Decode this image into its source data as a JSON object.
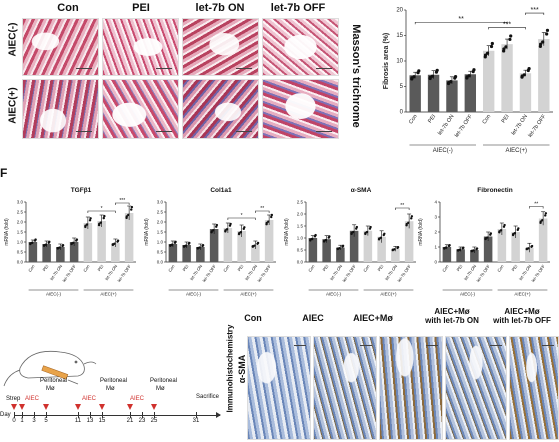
{
  "panel_a": {
    "columns": [
      "Con",
      "PEI",
      "let-7b ON",
      "let-7b OFF"
    ],
    "rows": [
      "AIEC(-)",
      "AIEC(+)"
    ],
    "stain": "Masson's trichrome"
  },
  "panel_f_label": "F",
  "panel_i": {
    "columns": [
      "Con",
      "AIEC",
      "AIEC+Mø",
      "AIEC+Mø\nwith let-7b ON",
      "AIEC+Mø\nwith let-7b OFF"
    ],
    "row_label_1": "α-SMA",
    "row_label_2": "Immunohistochemistry"
  },
  "timeline": {
    "labels_top": [
      "Strep",
      "AIEC",
      "Peritoneal",
      "Mø",
      "AIEC",
      "Peritoneal",
      "Mø",
      "AIEC",
      "Peritoneal",
      "Mø",
      "Sacrifice"
    ],
    "day_label": "Day",
    "days": [
      "0",
      "1",
      "3",
      "5",
      "11",
      "13",
      "15",
      "21",
      "23",
      "25",
      "31"
    ]
  },
  "charts": {
    "fibrosis": {
      "title": "",
      "ylabel": "Fibrosis area (%)",
      "yticks": [
        "0",
        "5",
        "10",
        "15",
        "20"
      ],
      "categories": [
        "Con",
        "PEI",
        "let-7b ON",
        "let-7b OFF",
        "Con",
        "PEI",
        "let-7b ON",
        "let-7b OFF"
      ],
      "group_labels": [
        "AIEC(-)",
        "AIEC(+)"
      ],
      "sig": [
        "**",
        "***",
        "***"
      ]
    },
    "tgfb1": {
      "title": "TGFβ1",
      "ylabel": "mRNA (fold)",
      "yticks": [
        "0.0",
        "0.5",
        "1.0",
        "1.5",
        "2.0",
        "2.5",
        "3.0"
      ],
      "categories": [
        "Con",
        "PEI",
        "let-7b ON",
        "let-7b OFF",
        "Con",
        "PEI",
        "let-7b ON",
        "let-7b OFF"
      ],
      "group_labels": [
        "AIEC(-)",
        "AIEC(+)"
      ],
      "sig": [
        "*",
        "***"
      ]
    },
    "col1a1": {
      "title": "Col1a1",
      "ylabel": "mRNA (fold)",
      "yticks": [
        "0.0",
        "0.5",
        "1.0",
        "1.5",
        "2.0",
        "2.5",
        "3.0"
      ],
      "categories": [
        "Con",
        "PEI",
        "let-7b ON",
        "let-7b OFF",
        "Con",
        "PEI",
        "let-7b ON",
        "let-7b OFF"
      ],
      "group_labels": [
        "AIEC(-)",
        "AIEC(+)"
      ],
      "sig": [
        "*",
        "**"
      ]
    },
    "asma": {
      "title": "α-SMA",
      "ylabel": "mRNA (fold)",
      "yticks": [
        "0.0",
        "0.5",
        "1.0",
        "1.5",
        "2.0",
        "2.5"
      ],
      "categories": [
        "Con",
        "PEI",
        "let-7b ON",
        "let-7b OFF",
        "Con",
        "PEI",
        "let-7b ON",
        "let-7b OFF"
      ],
      "group_labels": [
        "AIEC(-)",
        "AIEC(+)"
      ],
      "sig": [
        "**"
      ]
    },
    "fibronectin": {
      "title": "Fibronectin",
      "ylabel": "mRNA (fold)",
      "yticks": [
        "0",
        "1",
        "2",
        "3",
        "4"
      ],
      "categories": [
        "Con",
        "PEI",
        "let-7b ON",
        "let-7b OFF",
        "Con",
        "PEI",
        "let-7b ON",
        "let-7b OFF"
      ],
      "group_labels": [
        "AIEC(-)",
        "AIEC(+)"
      ],
      "sig": [
        "**"
      ]
    }
  },
  "chart_data": [
    {
      "type": "bar",
      "title": "",
      "ylabel": "Fibrosis area (%)",
      "ylim": [
        0,
        20
      ],
      "categories": [
        "Con",
        "PEI",
        "let-7b ON",
        "let-7b OFF",
        "Con",
        "PEI",
        "let-7b ON",
        "let-7b OFF"
      ],
      "values": [
        7.2,
        7.3,
        6.2,
        7.4,
        12.0,
        13.3,
        7.6,
        14.3
      ],
      "errors": [
        0.6,
        0.8,
        0.7,
        0.6,
        1.0,
        1.0,
        0.6,
        1.3
      ],
      "colors": [
        "#5a5a5a",
        "#5a5a5a",
        "#5a5a5a",
        "#5a5a5a",
        "#d3d3d3",
        "#d3d3d3",
        "#d3d3d3",
        "#d3d3d3"
      ]
    },
    {
      "type": "bar",
      "title": "TGFβ1",
      "ylabel": "mRNA (fold)",
      "ylim": [
        0,
        3.0
      ],
      "categories": [
        "Con",
        "PEI",
        "let-7b ON",
        "let-7b OFF",
        "Con",
        "PEI",
        "let-7b ON",
        "let-7b OFF"
      ],
      "values": [
        1.0,
        0.9,
        0.75,
        1.0,
        1.95,
        2.05,
        0.95,
        2.45
      ],
      "errors": [
        0.1,
        0.15,
        0.15,
        0.2,
        0.3,
        0.3,
        0.2,
        0.35
      ],
      "colors": [
        "#5a5a5a",
        "#5a5a5a",
        "#5a5a5a",
        "#5a5a5a",
        "#d3d3d3",
        "#d3d3d3",
        "#d3d3d3",
        "#d3d3d3"
      ]
    },
    {
      "type": "bar",
      "title": "Col1a1",
      "ylabel": "mRNA (fold)",
      "ylim": [
        0,
        3.0
      ],
      "categories": [
        "Con",
        "PEI",
        "let-7b ON",
        "let-7b OFF",
        "Con",
        "PEI",
        "let-7b ON",
        "let-7b OFF"
      ],
      "values": [
        0.9,
        0.85,
        0.75,
        1.65,
        1.7,
        1.55,
        0.85,
        2.1
      ],
      "errors": [
        0.15,
        0.15,
        0.15,
        0.25,
        0.25,
        0.3,
        0.2,
        0.25
      ],
      "colors": [
        "#5a5a5a",
        "#5a5a5a",
        "#5a5a5a",
        "#5a5a5a",
        "#d3d3d3",
        "#d3d3d3",
        "#d3d3d3",
        "#d3d3d3"
      ]
    },
    {
      "type": "bar",
      "title": "α-SMA",
      "ylabel": "mRNA (fold)",
      "ylim": [
        0,
        2.5
      ],
      "categories": [
        "Con",
        "PEI",
        "let-7b ON",
        "let-7b OFF",
        "Con",
        "PEI",
        "let-7b ON",
        "let-7b OFF"
      ],
      "values": [
        1.0,
        0.95,
        0.6,
        1.3,
        1.3,
        1.05,
        0.55,
        1.7
      ],
      "errors": [
        0.1,
        0.15,
        0.1,
        0.25,
        0.2,
        0.25,
        0.1,
        0.3
      ],
      "colors": [
        "#5a5a5a",
        "#5a5a5a",
        "#5a5a5a",
        "#5a5a5a",
        "#d3d3d3",
        "#d3d3d3",
        "#d3d3d3",
        "#d3d3d3"
      ]
    },
    {
      "type": "bar",
      "title": "Fibronectin",
      "ylabel": "mRNA (fold)",
      "ylim": [
        0,
        4
      ],
      "categories": [
        "Con",
        "PEI",
        "let-7b ON",
        "let-7b OFF",
        "Con",
        "PEI",
        "let-7b ON",
        "let-7b OFF"
      ],
      "values": [
        1.0,
        0.85,
        0.8,
        1.7,
        2.2,
        2.0,
        0.95,
        2.9
      ],
      "errors": [
        0.15,
        0.15,
        0.2,
        0.3,
        0.4,
        0.4,
        0.3,
        0.45
      ],
      "colors": [
        "#5a5a5a",
        "#5a5a5a",
        "#5a5a5a",
        "#5a5a5a",
        "#d3d3d3",
        "#d3d3d3",
        "#d3d3d3",
        "#d3d3d3"
      ]
    }
  ]
}
